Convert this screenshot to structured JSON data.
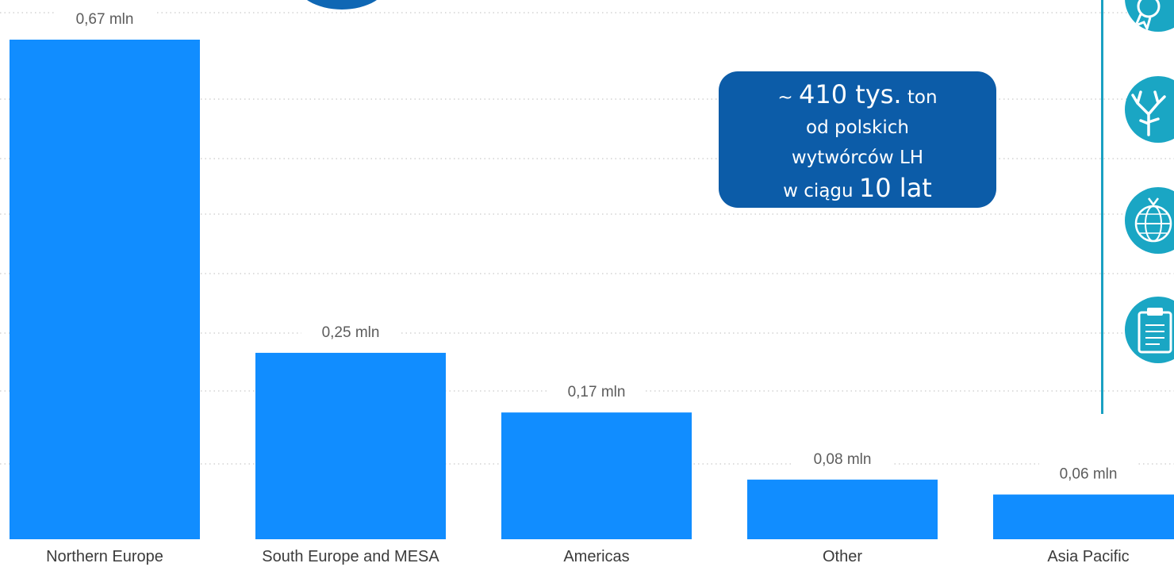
{
  "chart_data": {
    "type": "bar",
    "categories": [
      "Northern Europe",
      "South Europe and MESA",
      "Americas",
      "Other",
      "Asia Pacific"
    ],
    "values": [
      0.67,
      0.25,
      0.17,
      0.08,
      0.06
    ],
    "data_labels": [
      "0,67 mln",
      "0,25 mln",
      "0,17 mln",
      "0,08 mln",
      "0,06 mln"
    ],
    "title": "",
    "xlabel": "",
    "ylabel": "",
    "ylim": [
      0,
      0.67
    ],
    "grid": true,
    "legend": "none",
    "bar_color": "#118dff"
  },
  "callout": {
    "prefix": "~ ",
    "amount": "410 tys.",
    "unit": " ton",
    "line2": "od polskich",
    "line3": "wytwórców LH",
    "line4_prefix": "w ciągu ",
    "line4_big": "10 lat",
    "background": "#0c5ca8"
  },
  "side_icons": [
    "badge-icon",
    "coral-icon",
    "globe-icon",
    "clipboard-icon"
  ],
  "accent_color": "#1aa6c4"
}
